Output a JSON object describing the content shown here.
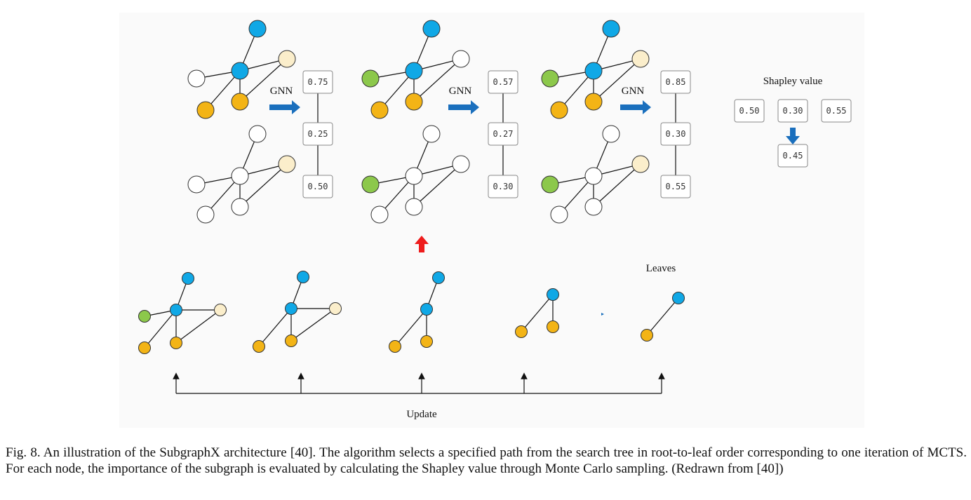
{
  "labels": {
    "gnn": "GNN",
    "shapley_title": "Shapley value",
    "leaves": "Leaves",
    "update": "Update"
  },
  "stages": [
    {
      "values": [
        "0.75",
        "0.25",
        "0.50"
      ]
    },
    {
      "values": [
        "0.57",
        "0.27",
        "0.30"
      ]
    },
    {
      "values": [
        "0.85",
        "0.30",
        "0.55"
      ]
    }
  ],
  "shapley": {
    "inputs": [
      "0.50",
      "0.30",
      "0.55"
    ],
    "result": "0.45"
  },
  "colors": {
    "blue": "#10a8e6",
    "orange": "#f3b416",
    "green": "#8cc84b",
    "cream": "#fbeecb",
    "white": "#ffffff",
    "arrow_blue": "#1a6fbd",
    "arrow_red": "#ee1c1c"
  },
  "caption": "Fig. 8.  An illustration of the SubgraphX architecture [40]. The algorithm selects a specified path from the search tree in root-to-leaf order corresponding to one iteration of MCTS. For each node, the importance of the subgraph is evaluated by calculating the Shapley value through Monte Carlo sampling. (Redrawn from [40])"
}
